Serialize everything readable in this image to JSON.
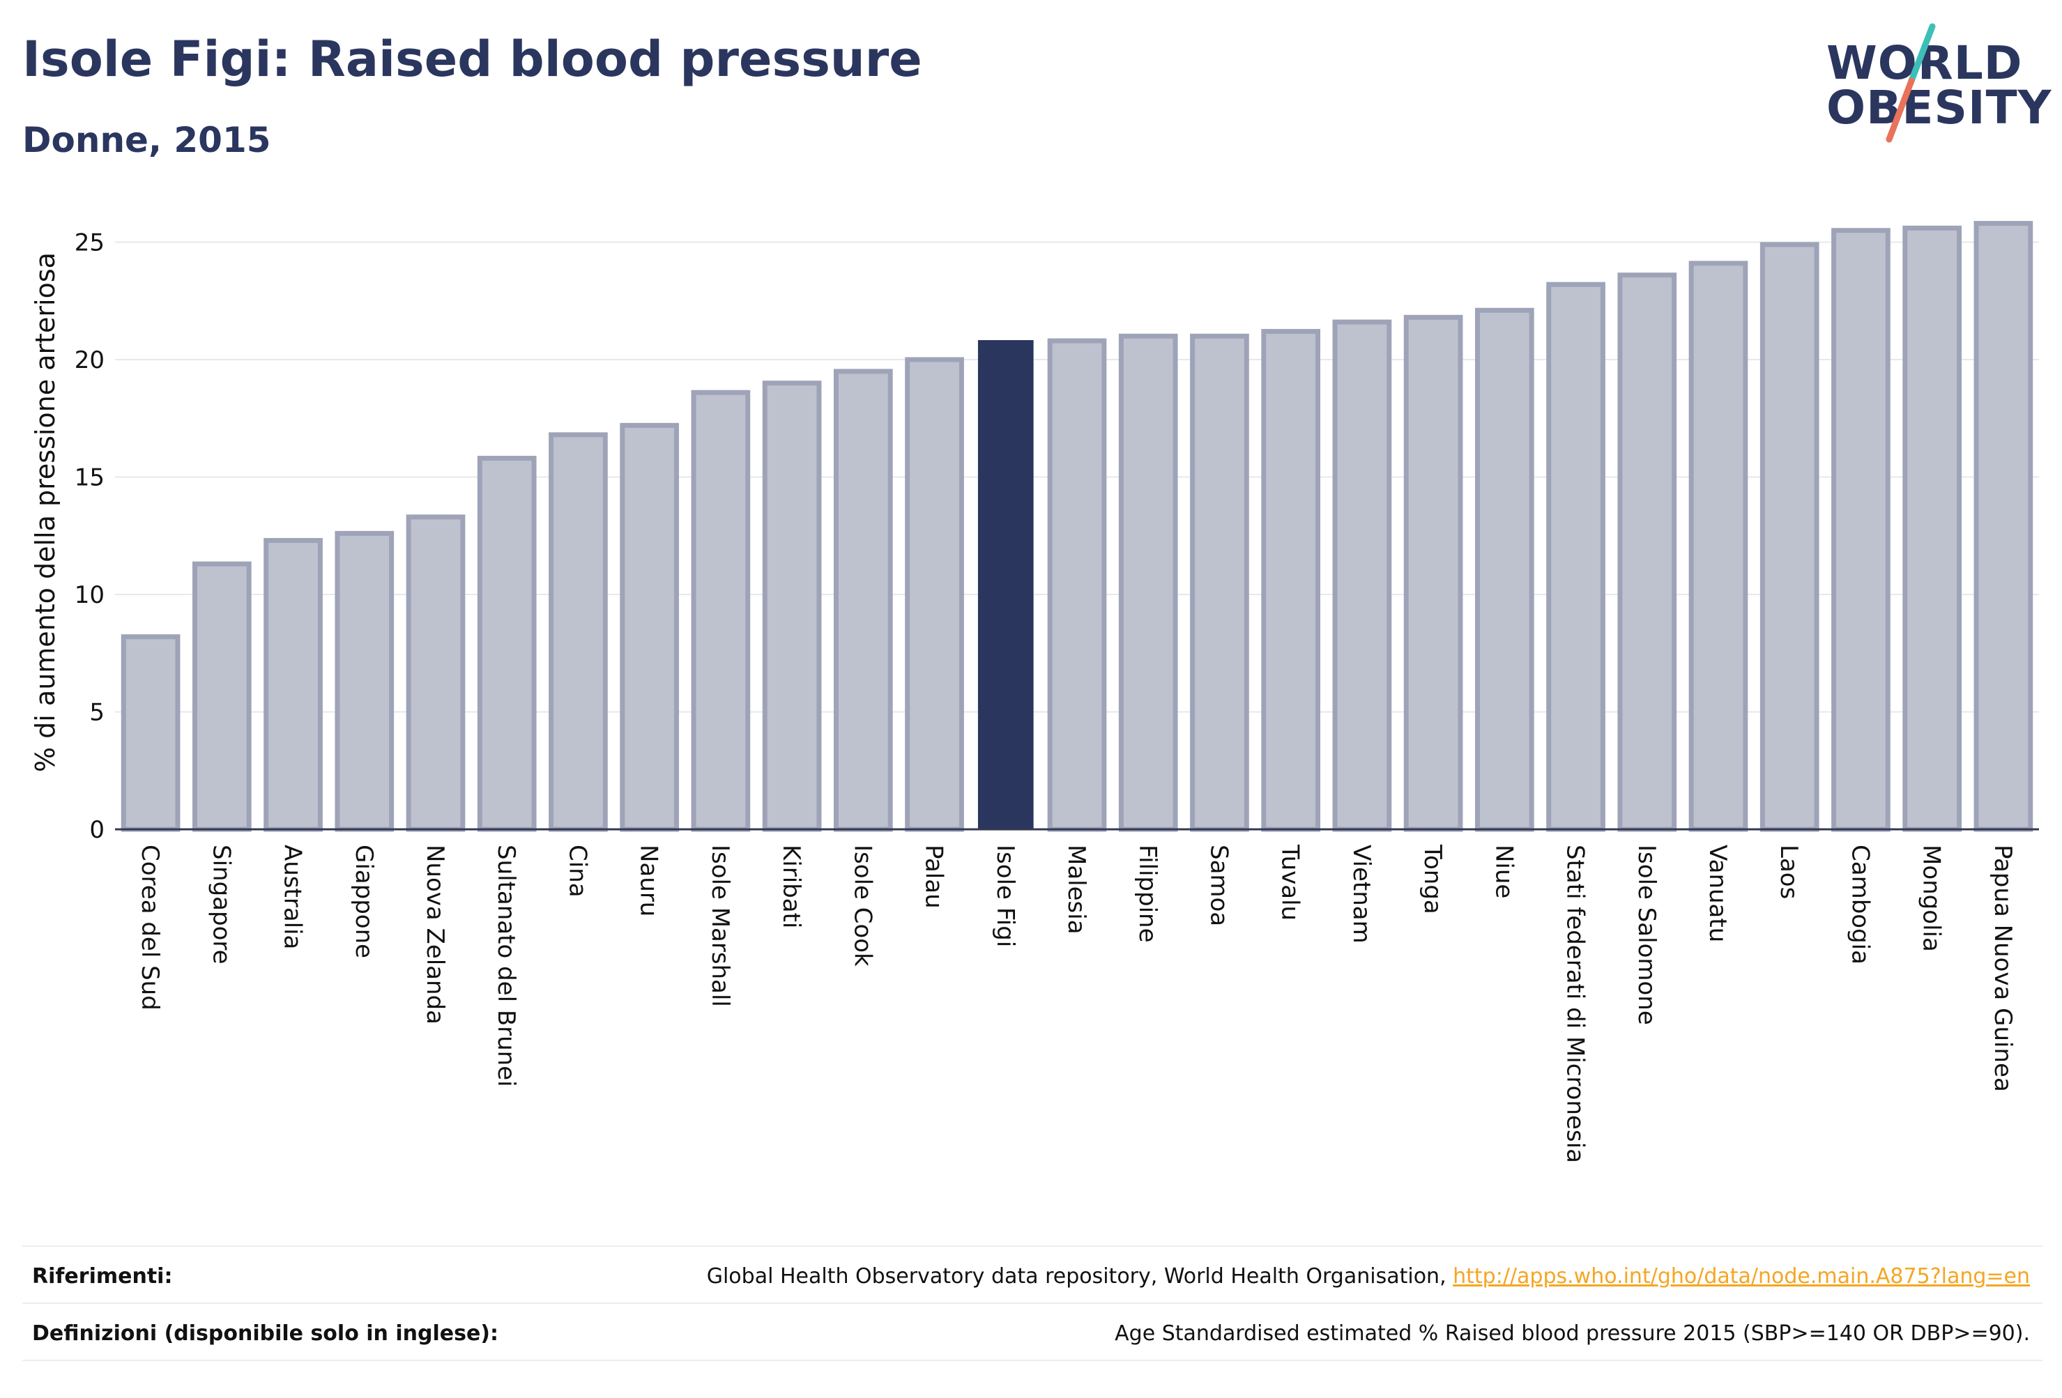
{
  "header": {
    "title": "Isole Figi: Raised blood pressure",
    "subtitle": "Donne, 2015"
  },
  "logo": {
    "line1": "WORLD",
    "line2": "OBESITY",
    "slash_colors": [
      "#3dbfb8",
      "#e8735a"
    ]
  },
  "chart_data": {
    "type": "bar",
    "ylabel": "% di aumento della pressione arteriosa",
    "xlabel": "",
    "ylim": [
      0,
      27
    ],
    "yticks": [
      0,
      5,
      10,
      15,
      20,
      25
    ],
    "grid": true,
    "highlight_category": "Isole Figi",
    "colors": {
      "bar": "#bec2cf",
      "bar_border": "#9ea3b8",
      "highlight": "#2b365f"
    },
    "categories": [
      "Corea del Sud",
      "Singapore",
      "Australia",
      "Giappone",
      "Nuova Zelanda",
      "Sultanato del Brunei",
      "Cina",
      "Nauru",
      "Isole Marshall",
      "Kiribati",
      "Isole Cook",
      "Palau",
      "Isole Figi",
      "Malesia",
      "Filippine",
      "Samoa",
      "Tuvalu",
      "Vietnam",
      "Tonga",
      "Niue",
      "Stati federati di Micronesia",
      "Isole Salomone",
      "Vanuatu",
      "Laos",
      "Cambogia",
      "Mongolia",
      "Papua Nuova Guinea"
    ],
    "values": [
      8.2,
      11.3,
      12.3,
      12.6,
      13.3,
      15.8,
      16.8,
      17.2,
      18.6,
      19.0,
      19.5,
      20.0,
      20.8,
      20.8,
      21.0,
      21.0,
      21.2,
      21.6,
      21.8,
      22.1,
      23.2,
      23.6,
      24.1,
      24.9,
      25.5,
      25.6,
      25.8
    ]
  },
  "footer": {
    "references_label": "Riferimenti:",
    "references_text": "Global Health Observatory data repository, World Health Organisation, ",
    "references_link": "http://apps.who.int/gho/data/node.main.A875?lang=en",
    "definitions_label": "Definizioni (disponibile solo in inglese):",
    "definitions_text": "Age Standardised estimated % Raised blood pressure 2015 (SBP>=140 OR DBP>=90)."
  }
}
